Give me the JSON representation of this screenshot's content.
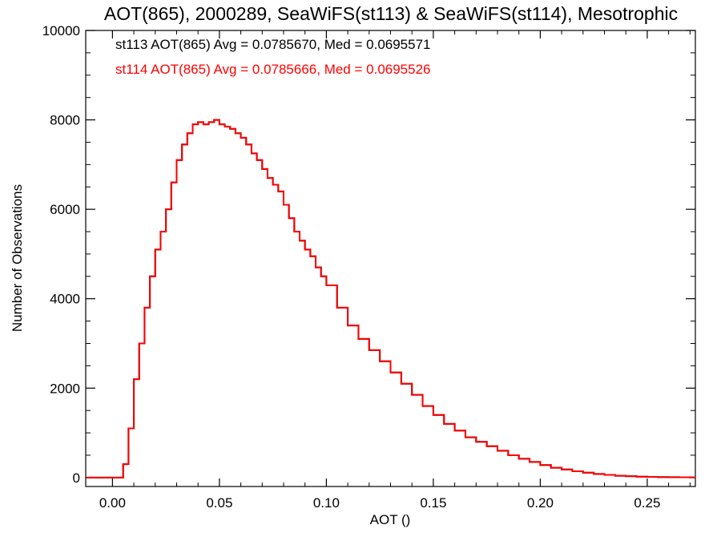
{
  "chart_data": {
    "type": "line",
    "step": true,
    "title": "AOT(865), 2000289, SeaWiFS(st113) & SeaWiFS(st114), Mesotrophic",
    "xlabel": "AOT ()",
    "ylabel": "Number of Observations",
    "xlim": [
      -0.0125,
      0.2725
    ],
    "ylim": [
      -200,
      10000
    ],
    "xticks": [
      0.0,
      0.05,
      0.1,
      0.15,
      0.2,
      0.25
    ],
    "xtick_labels": [
      "0.00",
      "0.05",
      "0.10",
      "0.15",
      "0.20",
      "0.25"
    ],
    "yticks": [
      0,
      2000,
      4000,
      6000,
      8000,
      10000
    ],
    "ytick_labels": [
      "0",
      "2000",
      "4000",
      "6000",
      "8000",
      "10000"
    ],
    "grid": false,
    "annotations": [
      {
        "text": "st113 AOT(865) Avg = 0.0785670, Med = 0.0695571",
        "color": "#000000"
      },
      {
        "text": "st114 AOT(865) Avg = 0.0785666, Med = 0.0695526",
        "color": "#ff0000"
      }
    ],
    "series": [
      {
        "color": "#000000",
        "x": [
          -0.012,
          0.0,
          0.0025,
          0.005,
          0.0075,
          0.01,
          0.0125,
          0.015,
          0.0175,
          0.02,
          0.0225,
          0.025,
          0.0275,
          0.03,
          0.0325,
          0.035,
          0.0375,
          0.04,
          0.0425,
          0.045,
          0.0475,
          0.05,
          0.0525,
          0.055,
          0.0575,
          0.06,
          0.0625,
          0.065,
          0.0675,
          0.07,
          0.0725,
          0.075,
          0.0775,
          0.08,
          0.0825,
          0.085,
          0.0875,
          0.09,
          0.0925,
          0.095,
          0.0975,
          0.1,
          0.105,
          0.11,
          0.115,
          0.12,
          0.125,
          0.13,
          0.135,
          0.14,
          0.145,
          0.15,
          0.155,
          0.16,
          0.165,
          0.17,
          0.175,
          0.18,
          0.185,
          0.19,
          0.195,
          0.2,
          0.205,
          0.21,
          0.215,
          0.22,
          0.225,
          0.23,
          0.235,
          0.24,
          0.245,
          0.25,
          0.255,
          0.26,
          0.265,
          0.27
        ],
        "y": [
          0,
          0,
          0,
          300,
          1100,
          2200,
          3000,
          3800,
          4500,
          5100,
          5500,
          6000,
          6600,
          7100,
          7450,
          7700,
          7900,
          7950,
          7900,
          7950,
          8000,
          7900,
          7850,
          7800,
          7700,
          7600,
          7450,
          7250,
          7100,
          6900,
          6700,
          6550,
          6400,
          6100,
          5800,
          5500,
          5300,
          5100,
          4950,
          4700,
          4500,
          4300,
          3800,
          3400,
          3100,
          2850,
          2600,
          2350,
          2100,
          1850,
          1600,
          1400,
          1200,
          1050,
          900,
          800,
          700,
          600,
          500,
          420,
          350,
          280,
          220,
          180,
          140,
          110,
          80,
          60,
          40,
          30,
          20,
          15,
          10,
          8,
          5,
          3
        ]
      },
      {
        "color": "#ff0000",
        "x": [
          -0.012,
          0.0,
          0.0025,
          0.005,
          0.0075,
          0.01,
          0.0125,
          0.015,
          0.0175,
          0.02,
          0.0225,
          0.025,
          0.0275,
          0.03,
          0.0325,
          0.035,
          0.0375,
          0.04,
          0.0425,
          0.045,
          0.0475,
          0.05,
          0.0525,
          0.055,
          0.0575,
          0.06,
          0.0625,
          0.065,
          0.0675,
          0.07,
          0.0725,
          0.075,
          0.0775,
          0.08,
          0.0825,
          0.085,
          0.0875,
          0.09,
          0.0925,
          0.095,
          0.0975,
          0.1,
          0.105,
          0.11,
          0.115,
          0.12,
          0.125,
          0.13,
          0.135,
          0.14,
          0.145,
          0.15,
          0.155,
          0.16,
          0.165,
          0.17,
          0.175,
          0.18,
          0.185,
          0.19,
          0.195,
          0.2,
          0.205,
          0.21,
          0.215,
          0.22,
          0.225,
          0.23,
          0.235,
          0.24,
          0.245,
          0.25,
          0.255,
          0.26,
          0.265,
          0.27
        ],
        "y": [
          0,
          0,
          0,
          300,
          1100,
          2200,
          3000,
          3800,
          4500,
          5100,
          5500,
          6000,
          6600,
          7100,
          7450,
          7700,
          7900,
          7950,
          7900,
          7950,
          8000,
          7900,
          7850,
          7800,
          7700,
          7600,
          7450,
          7250,
          7100,
          6900,
          6700,
          6550,
          6400,
          6100,
          5800,
          5500,
          5300,
          5100,
          4950,
          4700,
          4500,
          4300,
          3800,
          3400,
          3100,
          2850,
          2600,
          2350,
          2100,
          1850,
          1600,
          1400,
          1200,
          1050,
          900,
          800,
          700,
          600,
          500,
          420,
          350,
          280,
          220,
          180,
          140,
          110,
          80,
          60,
          40,
          30,
          20,
          15,
          10,
          8,
          5,
          3
        ]
      }
    ]
  }
}
